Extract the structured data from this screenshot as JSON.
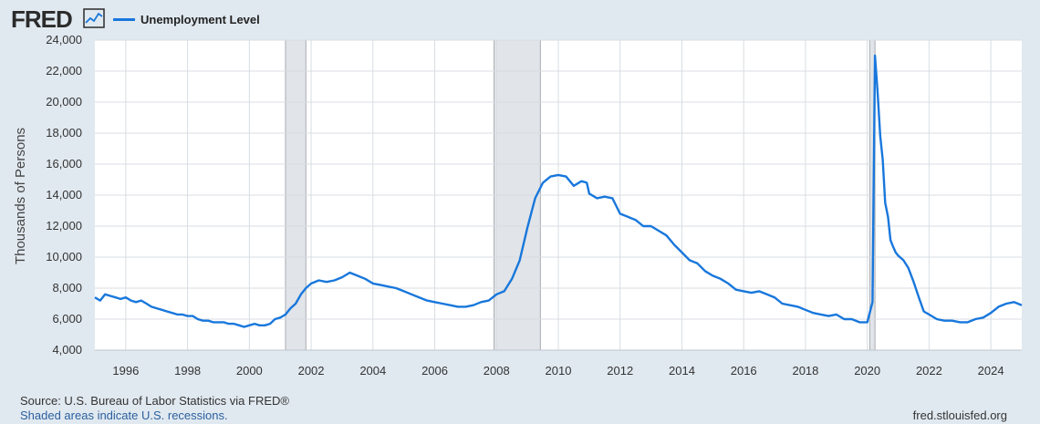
{
  "header": {
    "logo_text": "FRED",
    "legend_label": "Unemployment Level"
  },
  "colors": {
    "background": "#e1e9f0",
    "plot_background": "#ffffff",
    "series_line": "#1877dc",
    "recession_shade": "#e1e4e8",
    "gridline": "#d8dde3"
  },
  "footer": {
    "source": "Source: U.S. Bureau of Labor Statistics via FRED®",
    "note": "Shaded areas indicate U.S. recessions.",
    "site": "fred.stlouisfed.org"
  },
  "chart_data": {
    "type": "line",
    "title": "",
    "ylabel": "Thousands of Persons",
    "xlabel": "",
    "xlim": [
      1995.0,
      2025.0
    ],
    "ylim": [
      4000,
      24000
    ],
    "grid": true,
    "legend": "top-left",
    "yticks": [
      4000,
      6000,
      8000,
      10000,
      12000,
      14000,
      16000,
      18000,
      20000,
      22000,
      24000
    ],
    "ytick_labels": [
      "4,000",
      "6,000",
      "8,000",
      "10,000",
      "12,000",
      "14,000",
      "16,000",
      "18,000",
      "20,000",
      "22,000",
      "24,000"
    ],
    "xticks": [
      1996,
      1998,
      2000,
      2002,
      2004,
      2006,
      2008,
      2010,
      2012,
      2014,
      2016,
      2018,
      2020,
      2022,
      2024
    ],
    "xtick_labels": [
      "1996",
      "1998",
      "2000",
      "2002",
      "2004",
      "2006",
      "2008",
      "2010",
      "2012",
      "2014",
      "2016",
      "2018",
      "2020",
      "2022",
      "2024"
    ],
    "recessions": [
      {
        "start": 2001.17,
        "end": 2001.83
      },
      {
        "start": 2007.92,
        "end": 2009.42
      },
      {
        "start": 2020.08,
        "end": 2020.25
      }
    ],
    "series": [
      {
        "name": "Unemployment Level",
        "x": [
          1995.0,
          1995.17,
          1995.33,
          1995.5,
          1995.67,
          1995.83,
          1996.0,
          1996.17,
          1996.33,
          1996.5,
          1996.67,
          1996.83,
          1997.0,
          1997.17,
          1997.33,
          1997.5,
          1997.67,
          1997.83,
          1998.0,
          1998.17,
          1998.33,
          1998.5,
          1998.67,
          1998.83,
          1999.0,
          1999.17,
          1999.33,
          1999.5,
          1999.67,
          1999.83,
          2000.0,
          2000.17,
          2000.33,
          2000.5,
          2000.67,
          2000.83,
          2001.0,
          2001.17,
          2001.33,
          2001.5,
          2001.67,
          2001.83,
          2002.0,
          2002.25,
          2002.5,
          2002.75,
          2003.0,
          2003.25,
          2003.5,
          2003.75,
          2004.0,
          2004.25,
          2004.5,
          2004.75,
          2005.0,
          2005.25,
          2005.5,
          2005.75,
          2006.0,
          2006.25,
          2006.5,
          2006.75,
          2007.0,
          2007.25,
          2007.5,
          2007.75,
          2008.0,
          2008.25,
          2008.5,
          2008.75,
          2009.0,
          2009.25,
          2009.5,
          2009.75,
          2010.0,
          2010.25,
          2010.5,
          2010.75,
          2010.92,
          2011.0,
          2011.25,
          2011.5,
          2011.75,
          2012.0,
          2012.25,
          2012.5,
          2012.75,
          2013.0,
          2013.25,
          2013.5,
          2013.75,
          2014.0,
          2014.25,
          2014.5,
          2014.75,
          2015.0,
          2015.25,
          2015.5,
          2015.75,
          2016.0,
          2016.25,
          2016.5,
          2016.75,
          2017.0,
          2017.25,
          2017.5,
          2017.75,
          2018.0,
          2018.25,
          2018.5,
          2018.75,
          2019.0,
          2019.25,
          2019.5,
          2019.75,
          2020.0,
          2020.17,
          2020.25,
          2020.33,
          2020.42,
          2020.5,
          2020.58,
          2020.67,
          2020.75,
          2020.83,
          2020.92,
          2021.0,
          2021.17,
          2021.33,
          2021.5,
          2021.67,
          2021.83,
          2022.0,
          2022.25,
          2022.5,
          2022.75,
          2023.0,
          2023.25,
          2023.5,
          2023.75,
          2024.0,
          2024.25,
          2024.5,
          2024.75,
          2025.0
        ],
        "values": [
          7400,
          7200,
          7600,
          7500,
          7400,
          7300,
          7400,
          7200,
          7100,
          7200,
          7000,
          6800,
          6700,
          6600,
          6500,
          6400,
          6300,
          6300,
          6200,
          6200,
          6000,
          5900,
          5900,
          5800,
          5800,
          5800,
          5700,
          5700,
          5600,
          5500,
          5600,
          5700,
          5600,
          5600,
          5700,
          6000,
          6100,
          6300,
          6700,
          7000,
          7600,
          8000,
          8300,
          8500,
          8400,
          8500,
          8700,
          9000,
          8800,
          8600,
          8300,
          8200,
          8100,
          8000,
          7800,
          7600,
          7400,
          7200,
          7100,
          7000,
          6900,
          6800,
          6800,
          6900,
          7100,
          7200,
          7600,
          7800,
          8600,
          9800,
          11900,
          13800,
          14800,
          15200,
          15300,
          15200,
          14600,
          14900,
          14800,
          14100,
          13800,
          13900,
          13800,
          12800,
          12600,
          12400,
          12000,
          12000,
          11700,
          11400,
          10800,
          10300,
          9800,
          9600,
          9100,
          8800,
          8600,
          8300,
          7900,
          7800,
          7700,
          7800,
          7600,
          7400,
          7000,
          6900,
          6800,
          6600,
          6400,
          6300,
          6200,
          6300,
          6000,
          6000,
          5800,
          5800,
          7100,
          23000,
          20800,
          17800,
          16300,
          13500,
          12600,
          11100,
          10700,
          10300,
          10100,
          9800,
          9300,
          8400,
          7400,
          6500,
          6300,
          6000,
          5900,
          5900,
          5800,
          5800,
          6000,
          6100,
          6400,
          6800,
          7000,
          7100,
          6900
        ]
      }
    ]
  }
}
